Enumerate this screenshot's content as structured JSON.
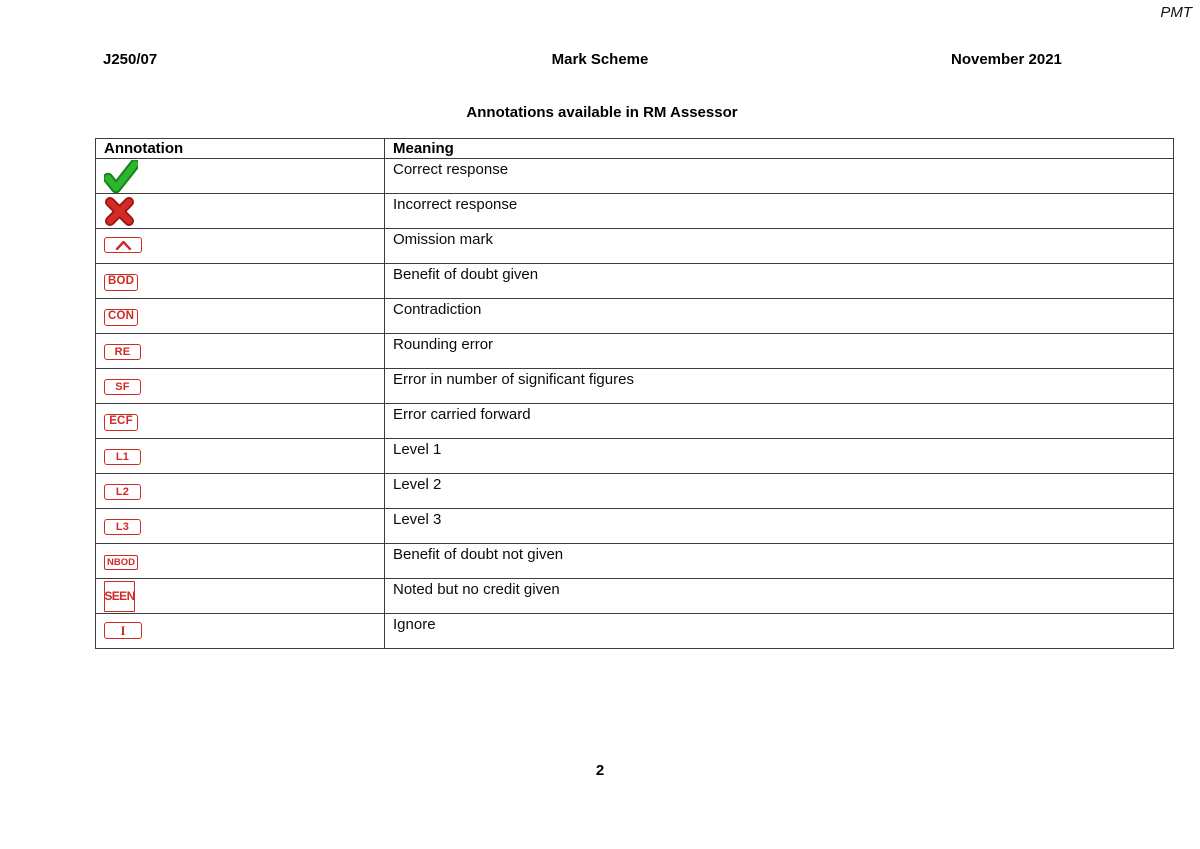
{
  "page": {
    "corner_label": "PMT",
    "header": {
      "left": "J250/07",
      "center": "Mark Scheme",
      "right": "November 2021"
    },
    "title": "Annotations available in RM Assessor",
    "page_number": "2"
  },
  "table": {
    "columns": [
      "Annotation",
      "Meaning"
    ],
    "rows": [
      {
        "icon": "green-tick-icon",
        "type": "tick",
        "label": "",
        "meaning": "Correct response"
      },
      {
        "icon": "red-cross-icon",
        "type": "cross",
        "label": "",
        "meaning": "Incorrect response"
      },
      {
        "icon": "omission-mark-stamp",
        "type": "caret",
        "label": "^",
        "meaning": "Omission mark"
      },
      {
        "icon": "bod-stamp",
        "type": "stamp",
        "label": "BOD",
        "meaning": "Benefit of doubt given"
      },
      {
        "icon": "con-stamp",
        "type": "stamp",
        "label": "CON",
        "meaning": "Contradiction"
      },
      {
        "icon": "re-stamp",
        "type": "stamp-wide",
        "label": "RE",
        "meaning": "Rounding error"
      },
      {
        "icon": "sf-stamp",
        "type": "stamp-wide",
        "label": "SF",
        "meaning": "Error in number of significant figures"
      },
      {
        "icon": "ecf-stamp",
        "type": "stamp",
        "label": "ECF",
        "meaning": "Error carried forward"
      },
      {
        "icon": "l1-stamp",
        "type": "stamp-wide",
        "label": "L1",
        "meaning": "Level 1"
      },
      {
        "icon": "l2-stamp",
        "type": "stamp-wide",
        "label": "L2",
        "meaning": "Level 2"
      },
      {
        "icon": "l3-stamp",
        "type": "stamp-wide",
        "label": "L3",
        "meaning": "Level 3"
      },
      {
        "icon": "nbod-stamp",
        "type": "stamp-small",
        "label": "NBOD",
        "meaning": "Benefit of doubt not given"
      },
      {
        "icon": "seen-stamp",
        "type": "stamp-tall",
        "label": "SEEN",
        "meaning": "Noted but no credit given"
      },
      {
        "icon": "ignore-stamp",
        "type": "stamp-serif",
        "label": "I",
        "meaning": "Ignore"
      }
    ]
  },
  "colors": {
    "stamp_red": "#cf2b24",
    "tick_green_fill": "#2db52d",
    "tick_green_edge": "#17821b",
    "cross_red_fill": "#d32a26",
    "cross_red_edge": "#9c1410"
  }
}
